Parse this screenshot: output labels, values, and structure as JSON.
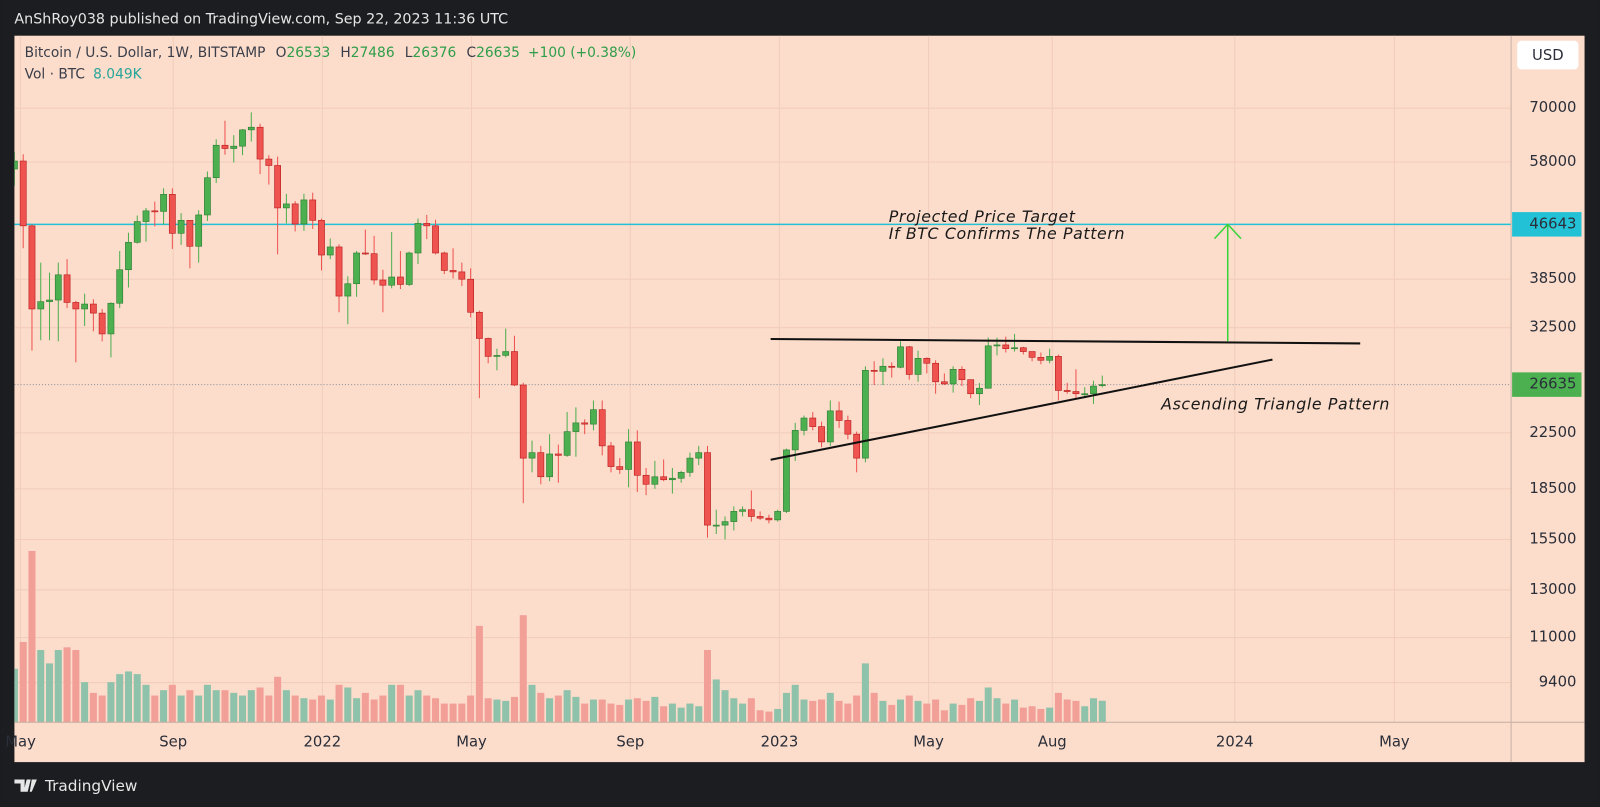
{
  "header": "AnShRoy038 published on TradingView.com, Sep 22, 2023 11:36 UTC",
  "footer": "TradingView",
  "chart_data": {
    "type": "candlestick",
    "symbol": "Bitcoin / U.S. Dollar, 1W, BITSTAMP",
    "ohlc_prefixes": [
      "O",
      "H",
      "L",
      "C"
    ],
    "change": "+100 (+0.38%)",
    "volume_title": "Vol · BTC",
    "last_volume_label": "8.049K",
    "currency": "USD",
    "log_scale": true,
    "grid": true,
    "up_color": "#4caf50",
    "down_color": "#ef5350",
    "volume_up_color": "#8fc2aa",
    "volume_down_color": "#f29f98",
    "candles": {
      "open": [
        56600,
        58200,
        46400,
        34700,
        35600,
        35800,
        39100,
        35500,
        34700,
        35300,
        34200,
        31800,
        35400,
        39800,
        43800,
        47100,
        48900,
        48800,
        51800,
        45200,
        47300,
        43200,
        48200,
        54900,
        61500,
        60800,
        61300,
        64900,
        65500,
        58600,
        57300,
        49400,
        50100,
        46700,
        50800,
        47300,
        41900,
        43100,
        36300,
        37900,
        42200,
        42100,
        38400,
        37700,
        38800,
        37800,
        42200,
        46800,
        46400,
        42200,
        39700,
        39500,
        38500,
        34300,
        31300,
        29400,
        29500,
        29900,
        26600,
        20600,
        21000,
        19300,
        20900,
        20800,
        22600,
        23300,
        23200,
        24400,
        21500,
        20000,
        19800,
        21800,
        19400,
        18800,
        19300,
        19100,
        19200,
        19600,
        20600,
        21000,
        16300,
        16300,
        16500,
        17100,
        17200,
        16800,
        16700,
        16600,
        17100,
        21200,
        22700,
        23700,
        23000,
        21800,
        24300,
        23500,
        22400,
        20600,
        28000,
        27900,
        28400,
        28300,
        30400,
        27600,
        29200,
        28700,
        26900,
        26700,
        28100,
        27100,
        25800,
        26300,
        30500,
        30600,
        30200,
        30300,
        29900,
        29300,
        29000,
        29400,
        26100,
        26000,
        25800,
        25800,
        26533
      ],
      "high": [
        60000,
        59600,
        46600,
        40800,
        39400,
        40800,
        41300,
        35700,
        36600,
        35900,
        34700,
        35500,
        42500,
        45300,
        48100,
        49400,
        50500,
        52900,
        52900,
        48500,
        47300,
        49000,
        56100,
        62800,
        67000,
        63700,
        65100,
        69000,
        66300,
        59400,
        59100,
        51900,
        50600,
        51900,
        52100,
        47600,
        44400,
        43500,
        38900,
        42500,
        45800,
        44800,
        39800,
        45400,
        42500,
        42400,
        47600,
        48200,
        47400,
        42400,
        42900,
        40800,
        40000,
        34500,
        31400,
        30200,
        32400,
        31600,
        26800,
        21900,
        21500,
        22400,
        21600,
        24200,
        24600,
        23600,
        25200,
        25200,
        21800,
        20600,
        22800,
        22700,
        19900,
        20400,
        20500,
        19900,
        19700,
        21000,
        21500,
        21500,
        17200,
        16800,
        17400,
        17400,
        18400,
        17100,
        16900,
        17200,
        21300,
        23300,
        23900,
        24200,
        23400,
        25200,
        25100,
        23900,
        22600,
        28400,
        28900,
        29200,
        28800,
        31000,
        30500,
        30000,
        29300,
        29000,
        27700,
        28400,
        28400,
        27100,
        26800,
        31400,
        31400,
        31500,
        31800,
        30400,
        29900,
        29800,
        30200,
        29600,
        26800,
        28100,
        26400,
        27000,
        27486
      ],
      "low": [
        53400,
        42900,
        30000,
        31100,
        31100,
        31000,
        34800,
        28800,
        32700,
        32100,
        31000,
        29300,
        34800,
        37400,
        43600,
        43900,
        46300,
        46600,
        42800,
        43400,
        40000,
        40800,
        47200,
        53900,
        59500,
        57900,
        59400,
        62300,
        55600,
        53600,
        42000,
        46800,
        45500,
        45600,
        45900,
        39700,
        41300,
        34300,
        32900,
        36200,
        41900,
        37800,
        34300,
        37300,
        37200,
        37600,
        40600,
        44300,
        42000,
        39200,
        38600,
        37600,
        33700,
        25400,
        28700,
        28000,
        29300,
        26500,
        17600,
        19600,
        18800,
        19000,
        18900,
        20700,
        20700,
        22400,
        22700,
        20800,
        19600,
        19500,
        18600,
        18300,
        18100,
        18500,
        19000,
        18200,
        18900,
        19300,
        20100,
        15600,
        15800,
        15500,
        16000,
        16800,
        16500,
        16600,
        16400,
        16500,
        17000,
        20400,
        22300,
        22700,
        21400,
        21500,
        22900,
        22000,
        19600,
        20300,
        26600,
        26600,
        27300,
        28200,
        27100,
        26900,
        27700,
        25800,
        26600,
        25900,
        26500,
        25400,
        24800,
        26300,
        29500,
        29800,
        29900,
        29600,
        28900,
        28600,
        28700,
        25200,
        25800,
        25400,
        25400,
        24900,
        26376
      ],
      "close": [
        58200,
        46400,
        34700,
        35600,
        35800,
        39100,
        35500,
        34700,
        35300,
        34200,
        31800,
        35400,
        39800,
        43800,
        47100,
        48900,
        48800,
        51800,
        45200,
        47300,
        43200,
        48200,
        54900,
        61500,
        60800,
        61300,
        64900,
        65500,
        58600,
        57300,
        49400,
        50100,
        46700,
        50800,
        47300,
        41900,
        43100,
        36300,
        37900,
        42200,
        42100,
        38400,
        37700,
        38800,
        37800,
        42200,
        46800,
        46400,
        42200,
        39700,
        39500,
        38500,
        34300,
        31300,
        29400,
        29500,
        29900,
        26600,
        20600,
        21000,
        19300,
        20900,
        20800,
        22600,
        23300,
        23200,
        24400,
        21500,
        20000,
        19800,
        21800,
        19400,
        18800,
        19300,
        19100,
        19200,
        19600,
        20600,
        21000,
        16300,
        16300,
        16500,
        17100,
        17200,
        16800,
        16700,
        16600,
        17100,
        21200,
        22700,
        23700,
        23000,
        21800,
        24300,
        23500,
        22400,
        20600,
        28000,
        27900,
        28400,
        28300,
        30400,
        27600,
        29200,
        28700,
        26900,
        26700,
        28100,
        27100,
        25800,
        26300,
        30500,
        30600,
        30200,
        30300,
        29900,
        29300,
        29000,
        29400,
        26100,
        26000,
        25800,
        25800,
        26500,
        26635
      ]
    },
    "volume": [
      20000,
      30000,
      64000,
      27000,
      22000,
      27000,
      28000,
      27000,
      15000,
      11000,
      10000,
      15000,
      18000,
      19000,
      18000,
      14000,
      10000,
      12000,
      14000,
      10000,
      12000,
      10000,
      14000,
      12000,
      12000,
      11000,
      10000,
      12000,
      13000,
      10000,
      17000,
      12000,
      10000,
      9000,
      8500,
      10000,
      8500,
      14000,
      13000,
      9000,
      11000,
      8500,
      10000,
      14000,
      14000,
      10000,
      12000,
      10000,
      9000,
      7000,
      7000,
      7000,
      10000,
      36000,
      9000,
      8500,
      8000,
      9500,
      40000,
      14000,
      11000,
      9000,
      10000,
      12000,
      9500,
      7000,
      8500,
      8500,
      7000,
      6500,
      8500,
      9000,
      8000,
      9500,
      6000,
      7000,
      5500,
      7000,
      6000,
      27000,
      16000,
      12000,
      9000,
      7000,
      9000,
      4500,
      4000,
      5000,
      11000,
      14000,
      8500,
      8000,
      8500,
      11000,
      8000,
      7000,
      10000,
      22000,
      11000,
      8000,
      6500,
      8500,
      10000,
      8000,
      7000,
      8500,
      4500,
      7000,
      6500,
      9000,
      8000,
      13000,
      9000,
      7000,
      8500,
      5500,
      6000,
      5000,
      5500,
      11000,
      8500,
      8000,
      6000,
      9000,
      8049
    ],
    "ylim": [
      8180,
      88600
    ],
    "yticks": [
      70000,
      58000,
      38500,
      32500,
      22500,
      18500,
      15500,
      13000,
      11000,
      9400
    ],
    "xlim": [
      0,
      170.6
    ],
    "xticks": [
      {
        "value": 0.7,
        "label": "May"
      },
      {
        "value": 18.1,
        "label": "Sep"
      },
      {
        "value": 35.1,
        "label": "2022"
      },
      {
        "value": 52.1,
        "label": "May"
      },
      {
        "value": 70.2,
        "label": "Sep"
      },
      {
        "value": 87.2,
        "label": "2023"
      },
      {
        "value": 104.2,
        "label": "May"
      },
      {
        "value": 118.3,
        "label": "Aug"
      },
      {
        "value": 139.1,
        "label": "2024"
      },
      {
        "value": 157.3,
        "label": "May"
      }
    ],
    "hline": {
      "value": 46643,
      "color": "#22c1d6"
    },
    "trendlines": [
      {
        "x": [
          86.2,
          153.4
        ],
        "y": [
          31240,
          30760
        ]
      },
      {
        "x": [
          86.2,
          143.4
        ],
        "y": [
          20480,
          29070
        ]
      }
    ],
    "arrow": {
      "x": 138.3,
      "y": [
        31000,
        46643
      ],
      "color": "#3ad43a"
    },
    "annotations": [
      "Projected Price Target",
      "If BTC Confirms The Pattern",
      "Ascending Triangle Pattern"
    ]
  }
}
